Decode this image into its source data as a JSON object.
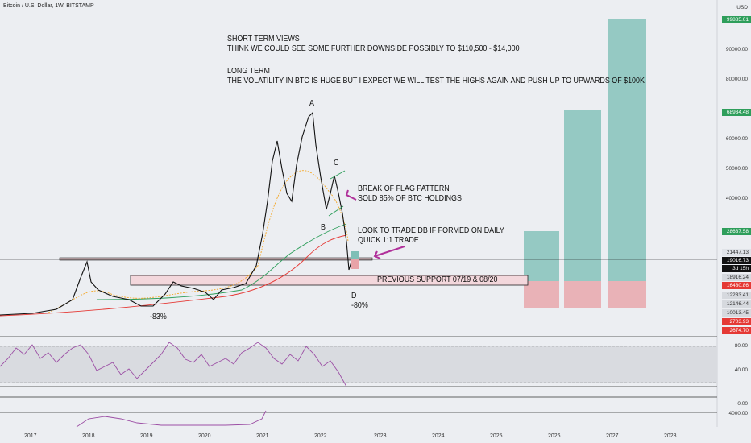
{
  "header": {
    "title": "Bitcoin / U.S. Dollar, 1W, BITSTAMP"
  },
  "currency": "USD",
  "notes": {
    "short_term_title": "SHORT TERM VIEWS",
    "short_term_body": "THINK WE COULD SEE SOME FURTHER DOWNSIDE POSSIBLY TO $110,500 - $14,000",
    "long_term_title": "LONG TERM",
    "long_term_body": "THE VOLATILITY IN BTC IS HUGE BUT I EXPECT WE WILL TEST THE HIGHS AGAIN AND PUSH UP TO UPWARDS OF $100K",
    "flag_line1": "BREAK OF FLAG PATTERN",
    "flag_line2": "SOLD 85% OF BTC HOLDINGS",
    "trade_line1": "LOOK TO TRADE DB IF FORMED ON DAILY",
    "trade_line2": "QUICK 1:1 TRADE",
    "support": "PREVIOUS SUPPORT 07/19 & 08/20",
    "drop_2018": "-83%",
    "drop_2022": "-80%"
  },
  "points": {
    "a": "A",
    "b": "B",
    "c": "C",
    "d": "D"
  },
  "price_axis": [
    "90000.00",
    "80000.00",
    "60000.00",
    "50000.00",
    "40000.00"
  ],
  "price_tags": [
    {
      "label": "99885.01",
      "color": "#2e9e5b"
    },
    {
      "label": "68934.48",
      "color": "#2e9e5b"
    },
    {
      "label": "28637.58",
      "color": "#2e9e5b"
    },
    {
      "label": "21447.13",
      "color": "#e0e3e8"
    },
    {
      "label": "19016.73",
      "color": "#111111"
    },
    {
      "label": "3d 15h",
      "color": "#111111"
    },
    {
      "label": "18916.24",
      "color": "#d6d9de"
    },
    {
      "label": "16480.86",
      "color": "#e53935"
    },
    {
      "label": "12233.41",
      "color": "#d6d9de"
    },
    {
      "label": "12146.44",
      "color": "#d6d9de"
    },
    {
      "label": "10013.45",
      "color": "#d6d9de"
    },
    {
      "label": "2703.93",
      "color": "#e53935"
    },
    {
      "label": "2674.70",
      "color": "#e53935"
    }
  ],
  "rsi_axis": [
    "80.00",
    "40.00"
  ],
  "indicator3_axis": [
    "0.00"
  ],
  "indicator4_axis": [
    "4000.00"
  ],
  "x_axis": [
    "2017",
    "2018",
    "2019",
    "2020",
    "2021",
    "2022",
    "2023",
    "2024",
    "2025",
    "2026",
    "2027",
    "2028"
  ],
  "colors": {
    "target_green": "#7fbfb6",
    "stop_red": "#e8a3a8",
    "rsi_line": "#9c4fa5",
    "ma_red": "#e53935",
    "ma_green": "#2e9e5b",
    "ma_orange": "#f5a623",
    "arrow": "#b0309a"
  }
}
